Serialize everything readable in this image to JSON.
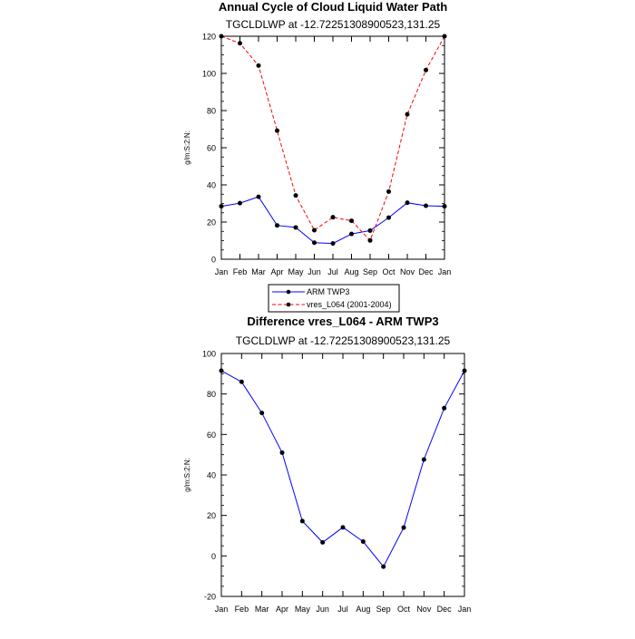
{
  "chart_data": [
    {
      "type": "line",
      "title": "Annual Cycle of Cloud Liquid Water Path",
      "subtitle": "TGCLDLWP at -12.72251308900523,131.25",
      "xlabel": "",
      "ylabel": "g/m:S:2:N:",
      "categories": [
        "Jan",
        "Feb",
        "Mar",
        "Apr",
        "May",
        "Jun",
        "Jul",
        "Aug",
        "Sep",
        "Oct",
        "Nov",
        "Dec",
        "Jan"
      ],
      "ylim": [
        0,
        120
      ],
      "yticks": [
        0,
        20,
        40,
        60,
        80,
        100,
        120
      ],
      "series": [
        {
          "name": "ARM TWP3",
          "color": "#0000ff",
          "dash": "solid",
          "values": [
            28.5,
            30.2,
            33.6,
            18.2,
            17.1,
            8.9,
            8.5,
            13.6,
            15.4,
            22.4,
            30.4,
            28.8,
            28.5
          ]
        },
        {
          "name": "vres_L064 (2001-2004)",
          "color": "#ff0000",
          "dash": "dashed",
          "values": [
            120.0,
            116.2,
            104.2,
            69.2,
            34.3,
            15.6,
            22.6,
            20.7,
            10.1,
            36.4,
            78.0,
            101.8,
            120.0
          ]
        }
      ],
      "legend_position": "bottom-center"
    },
    {
      "type": "line",
      "title": "Difference vres_L064 - ARM TWP3",
      "subtitle": "TGCLDLWP at -12.72251308900523,131.25",
      "xlabel": "",
      "ylabel": "g/m:S:2:N:",
      "categories": [
        "Jan",
        "Feb",
        "Mar",
        "Apr",
        "May",
        "Jun",
        "Jul",
        "Aug",
        "Sep",
        "Oct",
        "Nov",
        "Dec",
        "Jan"
      ],
      "ylim": [
        -20,
        100
      ],
      "yticks": [
        -20,
        0,
        20,
        40,
        60,
        80,
        100
      ],
      "series": [
        {
          "name": "Difference",
          "color": "#0000ff",
          "dash": "solid",
          "values": [
            91.5,
            86.0,
            70.6,
            51.0,
            17.2,
            6.7,
            14.1,
            7.1,
            -5.3,
            14.0,
            47.6,
            73.0,
            91.5
          ]
        }
      ]
    }
  ]
}
